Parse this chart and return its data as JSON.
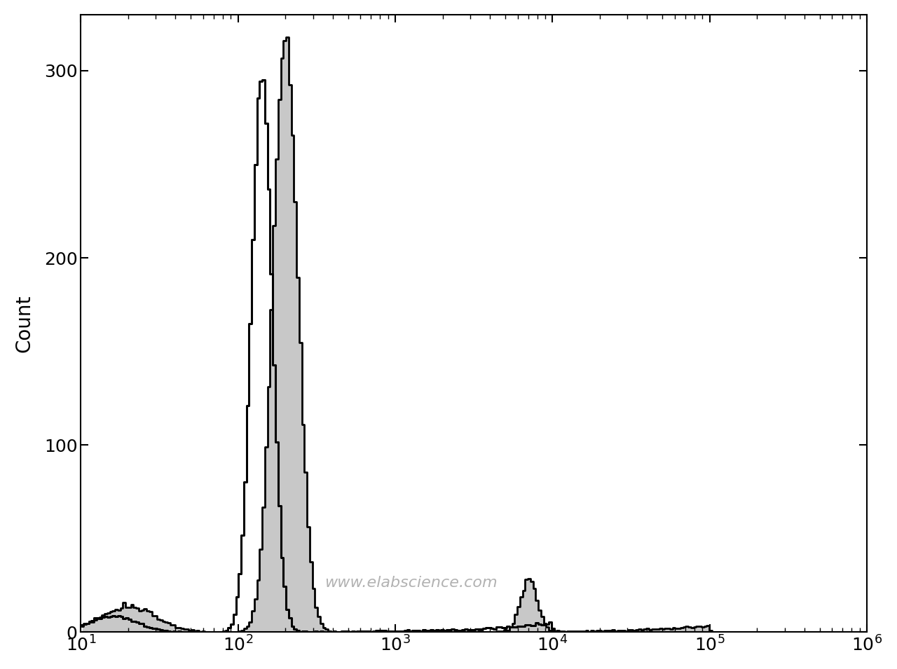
{
  "ylabel": "Count",
  "xlabel": "",
  "ylim": [
    0,
    330
  ],
  "xlim_log": [
    10,
    1000000
  ],
  "yticks": [
    0,
    100,
    200,
    300
  ],
  "background_color": "#ffffff",
  "plot_bg_color": "#ffffff",
  "watermark": "www.elabscience.com",
  "filled_hist": {
    "fill_color": "#c8c8c8",
    "line_color": "#000000",
    "line_width": 2.0,
    "peak_height": 318
  },
  "empty_hist": {
    "line_color": "#000000",
    "line_width": 2.2,
    "peak_height": 295
  }
}
